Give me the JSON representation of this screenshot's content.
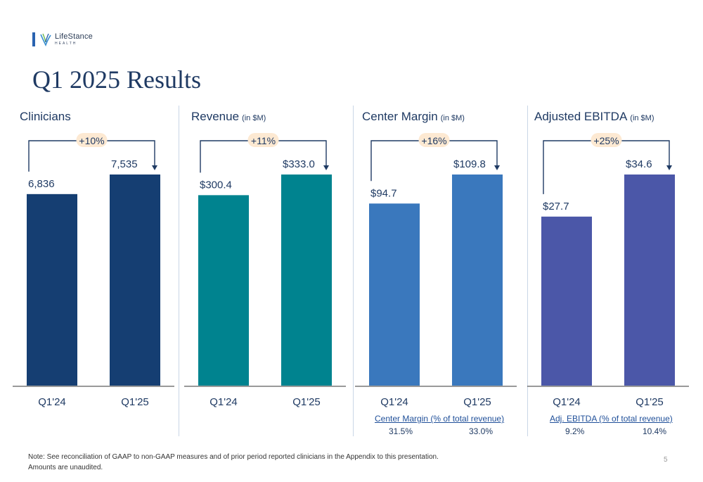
{
  "logo": {
    "name": "LifeStance",
    "sub": "HEALTH"
  },
  "header": {
    "title": "Q1 2025 Results"
  },
  "chart_data": [
    {
      "type": "bar",
      "title": "Clinicians",
      "unit": "",
      "categories": [
        "Q1'24",
        "Q1'25"
      ],
      "values": [
        6836,
        7535
      ],
      "value_labels": [
        "6,836",
        "7,535"
      ],
      "growth_label": "+10%",
      "color": "#153e72"
    },
    {
      "type": "bar",
      "title": "Revenue",
      "unit": "(in $M)",
      "categories": [
        "Q1'24",
        "Q1'25"
      ],
      "values": [
        300.4,
        333.0
      ],
      "value_labels": [
        "$300.4",
        "$333.0"
      ],
      "growth_label": "+11%",
      "color": "#00838f"
    },
    {
      "type": "bar",
      "title": "Center Margin",
      "unit": "(in $M)",
      "categories": [
        "Q1'24",
        "Q1'25"
      ],
      "values": [
        94.7,
        109.8
      ],
      "value_labels": [
        "$94.7",
        "$109.8"
      ],
      "growth_label": "+16%",
      "color": "#3a78bd",
      "sub_metric": {
        "label": "Center Margin (% of total revenue)",
        "values": [
          "31.5%",
          "33.0%"
        ]
      }
    },
    {
      "type": "bar",
      "title": "Adjusted EBITDA",
      "unit": "(in $M)",
      "categories": [
        "Q1'24",
        "Q1'25"
      ],
      "values": [
        27.7,
        34.6
      ],
      "value_labels": [
        "$27.7",
        "$34.6"
      ],
      "growth_label": "+25%",
      "color": "#4b57a8",
      "sub_metric": {
        "label": "Adj. EBITDA (% of total revenue)",
        "values": [
          "9.2%",
          "10.4%"
        ]
      }
    }
  ],
  "footnote": {
    "line1": "Note:  See reconciliation of GAAP to non-GAAP measures and of prior period reported clinicians in the Appendix to this presentation.",
    "line2": "Amounts are unaudited."
  },
  "page_number": "5",
  "colors": {
    "title": "#1f3a63",
    "axis": "#1f3a63",
    "badge": "#fde9d2"
  }
}
